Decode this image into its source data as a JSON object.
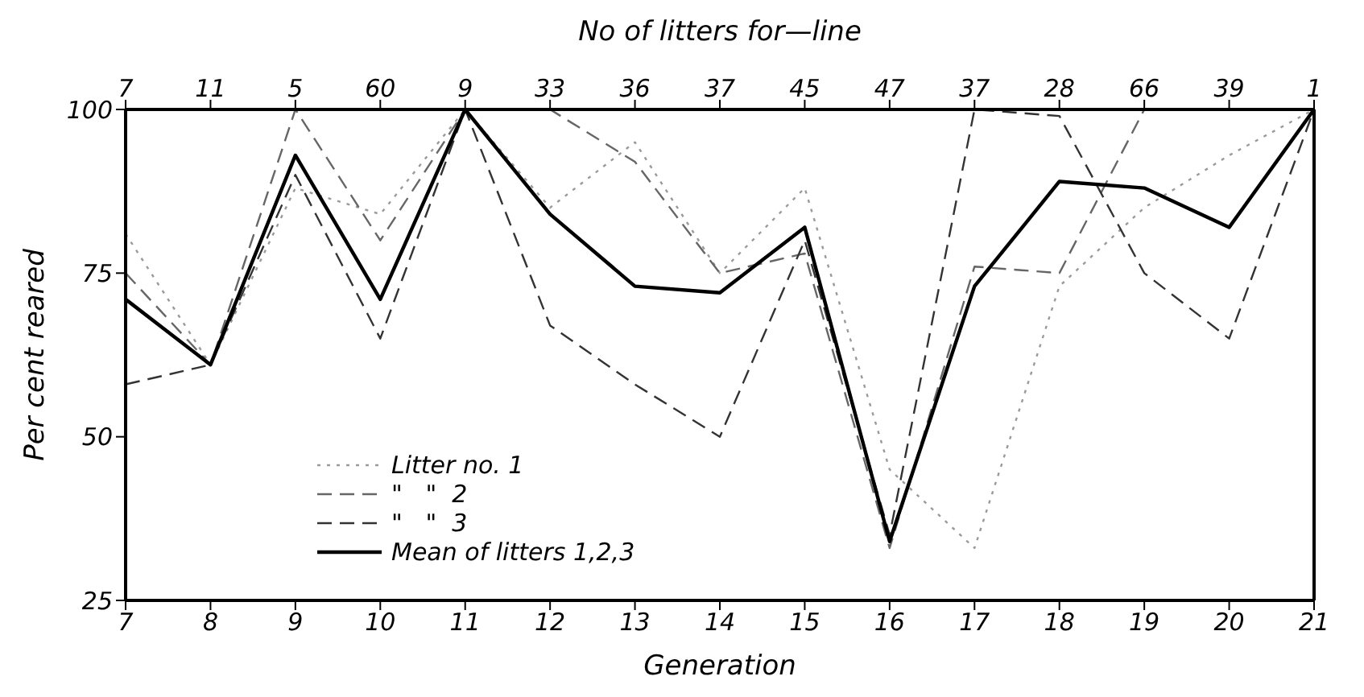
{
  "chart_data": {
    "type": "line",
    "xlabel": "Generation",
    "ylabel": "Per cent reared",
    "x2label": "No of litters for—line",
    "x": [
      7,
      8,
      9,
      10,
      11,
      12,
      13,
      14,
      15,
      16,
      17,
      18,
      19,
      20,
      21
    ],
    "xlim": [
      7,
      21
    ],
    "xticks": [
      7,
      8,
      9,
      10,
      11,
      12,
      13,
      14,
      15,
      16,
      17,
      18,
      19,
      20,
      21
    ],
    "ylim": [
      25,
      100
    ],
    "yticks": [
      25,
      50,
      75,
      100
    ],
    "grid": false,
    "legend": "bottom left",
    "marker": "none",
    "annotations": [
      "7",
      "11",
      "5",
      "60",
      "9",
      "33",
      "36",
      "37",
      "45",
      "47",
      "37",
      "28",
      "66",
      "39",
      "1"
    ],
    "series": [
      {
        "name": "Litter no. 1",
        "color": "#9a9a9a",
        "line_style": "dotted",
        "values": [
          81,
          61,
          88,
          84,
          100,
          85,
          95,
          75,
          88,
          45,
          33,
          73,
          85,
          93,
          100
        ]
      },
      {
        "name": "\"   \"  2",
        "color": "#666666",
        "line_style": "dashed",
        "values": [
          75,
          61,
          100,
          80,
          100,
          100,
          92,
          75,
          78,
          33,
          76,
          75,
          100,
          100,
          100
        ]
      },
      {
        "name": "\"   \"  3",
        "color": "#333333",
        "line_style": "dashed",
        "values": [
          58,
          61,
          90,
          65,
          100,
          67,
          58,
          50,
          80,
          35,
          100,
          99,
          75,
          65,
          100
        ]
      },
      {
        "name": "Mean of litters 1,2,3",
        "color": "#000000",
        "line_style": "solid",
        "values": [
          71,
          61,
          93,
          71,
          100,
          84,
          73,
          72,
          82,
          34,
          73,
          89,
          88,
          82,
          100
        ]
      }
    ]
  }
}
